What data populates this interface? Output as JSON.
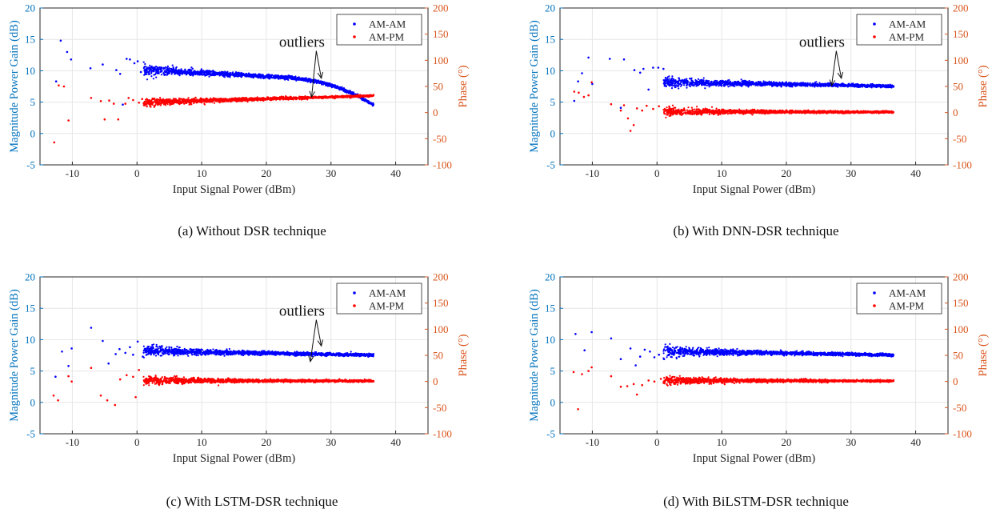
{
  "colors": {
    "left_axis": "#0072BD",
    "right_axis": "#D95319",
    "am_am": "#0000FF",
    "am_pm": "#FF0000",
    "grid": "#e6e6e6",
    "axes": "#262626"
  },
  "chart_data": [
    {
      "type": "scatter",
      "panel": "a",
      "caption": "(a)  Without DSR technique",
      "xlabel": "Input Signal Power (dBm)",
      "ylabel_left": "Magnitude Power Gain (dB)",
      "ylabel_right": "Phase (°)",
      "xlim": [
        -15,
        45
      ],
      "ylim_left": [
        -5,
        20
      ],
      "ylim_right": [
        -100,
        200
      ],
      "xticks": [
        -10,
        0,
        10,
        20,
        30,
        40
      ],
      "yticks_left": [
        -5,
        0,
        5,
        10,
        15,
        20
      ],
      "yticks_right": [
        -100,
        -50,
        0,
        50,
        100,
        150,
        200
      ],
      "grid": true,
      "legend_position": "top-right",
      "series": [
        {
          "name": "AM-AM",
          "axis": "left",
          "trend": "amam_a",
          "points": [
            [
              -12.5,
              8.3
            ],
            [
              -11.8,
              14.8
            ],
            [
              -10.8,
              13.0
            ],
            [
              -10.2,
              11.8
            ],
            [
              -7.2,
              10.4
            ],
            [
              -5.3,
              11.0
            ],
            [
              -3.2,
              10.1
            ],
            [
              -2.6,
              9.5
            ],
            [
              -2.2,
              4.6
            ],
            [
              -1.6,
              11.9
            ],
            [
              -1.1,
              11.8
            ],
            [
              -0.4,
              11.2
            ],
            [
              0.1,
              11.5
            ],
            [
              0.6,
              9.8
            ]
          ]
        },
        {
          "name": "AM-PM",
          "axis": "right",
          "trend": "ampm_a",
          "points": [
            [
              -12.8,
              -57
            ],
            [
              -12.1,
              52
            ],
            [
              -11.3,
              50
            ],
            [
              -10.6,
              -15
            ],
            [
              -7.1,
              28
            ],
            [
              -5.6,
              22
            ],
            [
              -5.0,
              -13
            ],
            [
              -4.3,
              23
            ],
            [
              -3.6,
              17
            ],
            [
              -2.9,
              -13
            ],
            [
              -1.8,
              17
            ],
            [
              -1.3,
              28
            ],
            [
              -0.6,
              24
            ],
            [
              0.3,
              19
            ],
            [
              0.8,
              26
            ]
          ]
        }
      ],
      "annotation": {
        "text": "outliers",
        "targets": [
          [
            27.0,
            5.8
          ],
          [
            28.5,
            8.8
          ]
        ]
      }
    },
    {
      "type": "scatter",
      "panel": "b",
      "caption": "(b)  With DNN-DSR technique",
      "xlabel": "Input Signal Power (dBm)",
      "ylabel_left": "Magnitude Power Gain (dB)",
      "ylabel_right": "Phase (°)",
      "xlim": [
        -15,
        45
      ],
      "ylim_left": [
        -5,
        20
      ],
      "ylim_right": [
        -100,
        200
      ],
      "xticks": [
        -10,
        0,
        10,
        20,
        30,
        40
      ],
      "yticks_left": [
        -5,
        0,
        5,
        10,
        15,
        20
      ],
      "yticks_right": [
        -100,
        -50,
        0,
        50,
        100,
        150,
        200
      ],
      "grid": true,
      "legend_position": "top-right",
      "series": [
        {
          "name": "AM-AM",
          "axis": "left",
          "trend": "amam_flat",
          "points": [
            [
              -12.8,
              5.2
            ],
            [
              -12.2,
              8.3
            ],
            [
              -11.6,
              9.6
            ],
            [
              -10.6,
              12.1
            ],
            [
              -10.0,
              7.9
            ],
            [
              -7.3,
              11.9
            ],
            [
              -5.6,
              4.1
            ],
            [
              -5.1,
              11.8
            ],
            [
              -3.5,
              10.1
            ],
            [
              -2.6,
              9.7
            ],
            [
              -2.1,
              10.3
            ],
            [
              -1.3,
              7.0
            ],
            [
              -0.6,
              10.5
            ],
            [
              0.2,
              10.5
            ],
            [
              1.0,
              10.3
            ]
          ]
        },
        {
          "name": "AM-PM",
          "axis": "right",
          "trend": "ampm_flat",
          "points": [
            [
              -12.8,
              40
            ],
            [
              -12.1,
              38
            ],
            [
              -11.3,
              30
            ],
            [
              -10.6,
              33
            ],
            [
              -10.1,
              58
            ],
            [
              -7.1,
              16
            ],
            [
              -5.6,
              4
            ],
            [
              -5.1,
              14
            ],
            [
              -4.5,
              -11
            ],
            [
              -4.1,
              -35
            ],
            [
              -3.6,
              -24
            ],
            [
              -3.1,
              8
            ],
            [
              -2.3,
              4
            ],
            [
              -1.6,
              13
            ],
            [
              -0.6,
              7
            ],
            [
              0.3,
              12
            ]
          ]
        }
      ],
      "annotation": {
        "text": "outliers",
        "targets": [
          [
            27.0,
            7.6
          ],
          [
            28.5,
            8.8
          ]
        ]
      }
    },
    {
      "type": "scatter",
      "panel": "c",
      "caption": "(c)  With LSTM-DSR technique",
      "xlabel": "Input Signal Power (dBm)",
      "ylabel_left": "Magnitude Power Gain (dB)",
      "ylabel_right": "Phase (°)",
      "xlim": [
        -15,
        45
      ],
      "ylim_left": [
        -5,
        20
      ],
      "ylim_right": [
        -100,
        200
      ],
      "xticks": [
        -10,
        0,
        10,
        20,
        30,
        40
      ],
      "yticks_left": [
        -5,
        0,
        5,
        10,
        15,
        20
      ],
      "yticks_right": [
        -100,
        -50,
        0,
        50,
        100,
        150,
        200
      ],
      "grid": true,
      "legend_position": "top-right",
      "series": [
        {
          "name": "AM-AM",
          "axis": "left",
          "trend": "amam_flat",
          "points": [
            [
              -12.6,
              4.1
            ],
            [
              -11.6,
              8.1
            ],
            [
              -10.6,
              5.8
            ],
            [
              -10.1,
              8.6
            ],
            [
              -7.1,
              11.9
            ],
            [
              -5.3,
              9.8
            ],
            [
              -4.4,
              6.2
            ],
            [
              -3.3,
              7.7
            ],
            [
              -2.7,
              8.5
            ],
            [
              -1.8,
              7.9
            ],
            [
              -1.1,
              8.8
            ],
            [
              -0.6,
              7.6
            ],
            [
              0.1,
              9.7
            ],
            [
              0.9,
              7.3
            ]
          ]
        },
        {
          "name": "AM-PM",
          "axis": "right",
          "trend": "ampm_flat",
          "points": [
            [
              -12.9,
              -27
            ],
            [
              -12.2,
              -36
            ],
            [
              -10.6,
              10
            ],
            [
              -10.1,
              0
            ],
            [
              -7.1,
              26
            ],
            [
              -5.6,
              -27
            ],
            [
              -4.6,
              -36
            ],
            [
              -3.4,
              -45
            ],
            [
              -2.6,
              4
            ],
            [
              -1.6,
              12
            ],
            [
              -0.6,
              9
            ],
            [
              0.3,
              22
            ],
            [
              -0.2,
              -30
            ]
          ]
        }
      ],
      "annotation": {
        "text": "outliers",
        "targets": [
          [
            26.8,
            6.5
          ],
          [
            28.5,
            9.0
          ]
        ]
      }
    },
    {
      "type": "scatter",
      "panel": "d",
      "caption": "(d)  With BiLSTM-DSR technique",
      "xlabel": "Input Signal Power (dBm)",
      "ylabel_left": "Magnitude Power Gain (dB)",
      "ylabel_right": "Phase (°)",
      "xlim": [
        -15,
        45
      ],
      "ylim_left": [
        -5,
        20
      ],
      "ylim_right": [
        -100,
        200
      ],
      "xticks": [
        -10,
        0,
        10,
        20,
        30,
        40
      ],
      "yticks_left": [
        -5,
        0,
        5,
        10,
        15,
        20
      ],
      "yticks_right": [
        -100,
        -50,
        0,
        50,
        100,
        150,
        200
      ],
      "grid": true,
      "legend_position": "top-right",
      "series": [
        {
          "name": "AM-AM",
          "axis": "left",
          "trend": "amam_flat",
          "points": [
            [
              -12.6,
              10.9
            ],
            [
              -11.2,
              8.3
            ],
            [
              -10.1,
              11.2
            ],
            [
              -7.1,
              10.2
            ],
            [
              -5.6,
              6.9
            ],
            [
              -4.1,
              8.6
            ],
            [
              -3.3,
              5.9
            ],
            [
              -2.6,
              7.3
            ],
            [
              -1.9,
              8.4
            ],
            [
              -1.1,
              8.1
            ],
            [
              -0.4,
              7.2
            ],
            [
              0.3,
              7.6
            ],
            [
              1.1,
              6.9
            ]
          ]
        },
        {
          "name": "AM-PM",
          "axis": "right",
          "trend": "ampm_flat",
          "points": [
            [
              -12.9,
              18
            ],
            [
              -12.2,
              -53
            ],
            [
              -11.6,
              14
            ],
            [
              -10.6,
              20
            ],
            [
              -10.1,
              27
            ],
            [
              -7.1,
              10
            ],
            [
              -5.6,
              -10
            ],
            [
              -4.6,
              -9
            ],
            [
              -3.6,
              -5
            ],
            [
              -3.1,
              -25
            ],
            [
              -2.3,
              -7
            ],
            [
              -1.3,
              2
            ],
            [
              -0.4,
              0
            ],
            [
              0.6,
              5
            ]
          ]
        }
      ]
    }
  ]
}
